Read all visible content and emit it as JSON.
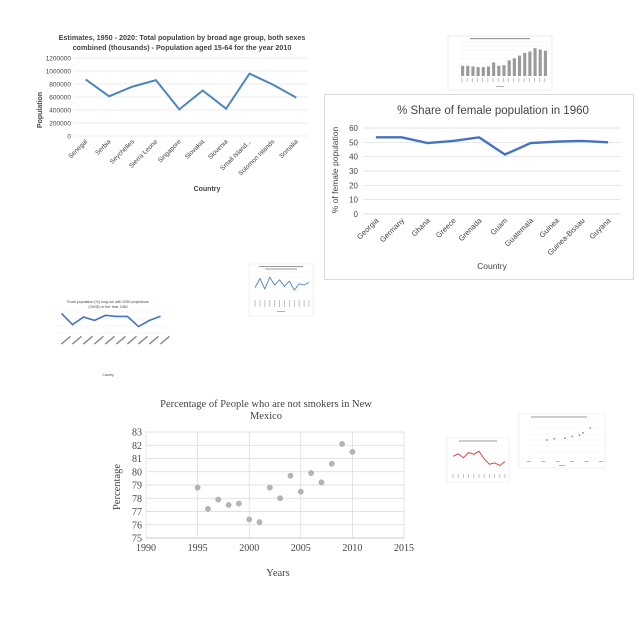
{
  "colors": {
    "line_blue": "#4a86c0",
    "line_darkblue": "#4472c4",
    "scatter_gray": "#b5b5b5",
    "small_red": "#d9382c",
    "bar_gray": "#9a9a9a",
    "grid": "#d9d9d9"
  },
  "chart_data": [
    {
      "id": "population",
      "type": "line",
      "title": "Estimates, 1950 - 2020: Total population by broad age group, both sexes combined (thousands) - Population aged 15-64 for the year 2010",
      "title_lines": [
        "Estimates, 1950 - 2020: Total population by broad age group, both sexes",
        "combined (thousands) - Population aged 15-64 for the year 2010"
      ],
      "xlabel": "Country",
      "ylabel": "Population",
      "ylim": [
        0,
        1200000
      ],
      "yticks": [
        "0",
        "200000",
        "400000",
        "600000",
        "800000",
        "1000000",
        "1200000"
      ],
      "ytick_values": [
        0,
        200000,
        400000,
        600000,
        800000,
        1000000,
        1200000
      ],
      "grid": true,
      "categories": [
        "Senegal",
        "Serbia",
        "Seychelles",
        "Sierra Leone",
        "Singapore",
        "Slovakia",
        "Slovenia",
        "Small Island...",
        "Solomon Islands",
        "Somalia"
      ],
      "values": [
        870000,
        610000,
        760000,
        860000,
        410000,
        700000,
        420000,
        960000,
        790000,
        590000
      ]
    },
    {
      "id": "female-share",
      "type": "line",
      "title": "% Share of female population in 1960",
      "xlabel": "Country",
      "ylabel": "% of female population",
      "ylim": [
        0,
        60
      ],
      "yticks": [
        "0",
        "10",
        "20",
        "30",
        "40",
        "50",
        "60"
      ],
      "ytick_values": [
        0,
        10,
        20,
        30,
        40,
        50,
        60
      ],
      "grid": true,
      "categories": [
        "Georgia",
        "Germany",
        "Ghana",
        "Greece",
        "Grenada",
        "Guam",
        "Guatemala",
        "Guinea",
        "Guinea-Bissau",
        "Guyana"
      ],
      "values": [
        53.5,
        53.5,
        49.5,
        51,
        53.5,
        41.5,
        49.5,
        50.5,
        51,
        50
      ]
    },
    {
      "id": "non-smokers",
      "type": "scatter",
      "title": "Percentage of People who are not smokers in New Mexico",
      "title_lines": [
        "Percentage of People who are not smokers in New",
        "Mexico"
      ],
      "xlabel": "Years",
      "ylabel": "Percentage",
      "xlim": [
        1990,
        2015
      ],
      "ylim": [
        75,
        83
      ],
      "xticks": [
        "1990",
        "1995",
        "2000",
        "2005",
        "2010",
        "2015"
      ],
      "xtick_values": [
        1990,
        1995,
        2000,
        2005,
        2010,
        2015
      ],
      "yticks": [
        "75",
        "76",
        "77",
        "78",
        "79",
        "80",
        "81",
        "82",
        "83"
      ],
      "ytick_values": [
        75,
        76,
        77,
        78,
        79,
        80,
        81,
        82,
        83
      ],
      "grid": true,
      "x": [
        1995,
        1996,
        1997,
        1998,
        1999,
        2000,
        2001,
        2002,
        2003,
        2004,
        2005,
        2006,
        2007,
        2008,
        2009,
        2010
      ],
      "y": [
        78.8,
        77.2,
        77.9,
        77.5,
        77.6,
        76.4,
        76.2,
        78.8,
        78.0,
        79.7,
        78.5,
        79.9,
        79.2,
        80.6,
        82.1,
        81.5
      ]
    },
    {
      "id": "rural-population",
      "type": "line",
      "title": "Rural population (%) long-run with 2050 projections (OWID) in the Year 1960",
      "title_lines": [
        "Rural population (%) long-run with 2050 projections",
        "(OWID) in the Year 1960"
      ],
      "xlabel": "Country",
      "ylim": [
        0,
        100
      ],
      "grid": true,
      "values": [
        95,
        55,
        82,
        70,
        88,
        84,
        84,
        48,
        70,
        85
      ]
    },
    {
      "id": "mini-bar",
      "type": "bar",
      "values": [
        0.3,
        0.3,
        0.28,
        0.26,
        0.26,
        0.28,
        0.4,
        0.3,
        0.32,
        0.46,
        0.52,
        0.6,
        0.68,
        0.72,
        0.82,
        0.78,
        0.74
      ]
    },
    {
      "id": "mini-blue-line",
      "type": "line",
      "values": [
        40,
        75,
        35,
        80,
        50,
        70,
        45,
        65,
        30,
        55,
        50,
        60
      ]
    },
    {
      "id": "mini-red-line",
      "type": "line",
      "values": [
        60,
        70,
        55,
        75,
        68,
        80,
        50,
        30,
        35,
        25,
        40
      ]
    },
    {
      "id": "mini-scatter",
      "type": "scatter",
      "x": [
        2000,
        2002,
        2005,
        2007,
        2009,
        2010,
        2012
      ],
      "y": [
        30,
        32,
        33,
        36,
        38,
        42,
        50
      ]
    }
  ]
}
